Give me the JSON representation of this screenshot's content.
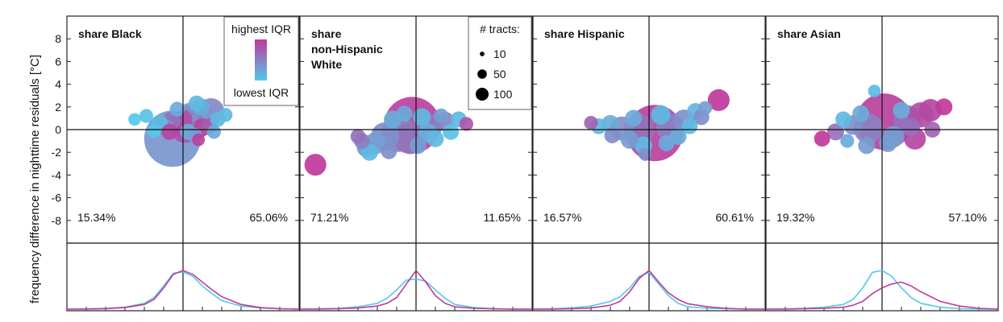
{
  "figure": {
    "ylabel_top": "difference in nighttime residuals [°C]",
    "ylabel_bottom": "frequency",
    "y_ticks": [
      "8",
      "6",
      "4",
      "2",
      "0",
      "-2",
      "-4",
      "-6",
      "-8"
    ]
  },
  "legend_color": {
    "top": "highest IQR",
    "bottom": "lowest IQR",
    "color_high": "#c0399a",
    "color_low": "#55c8ea"
  },
  "legend_size": {
    "title": "# tracts:",
    "items": [
      {
        "label": "10",
        "value": 10
      },
      {
        "label": "50",
        "value": 50
      },
      {
        "label": "100",
        "value": 100
      }
    ]
  },
  "chart_data": [
    {
      "type": "scatter",
      "title": "share Black",
      "ylim": [
        -10,
        10
      ],
      "pct_left": "15.34%",
      "pct_right": "65.06%",
      "points": [
        {
          "x": -0.55,
          "y": -0.8,
          "n": 100,
          "c": 0.35
        },
        {
          "x": 1.45,
          "y": 1.6,
          "n": 22,
          "c": 0.45
        },
        {
          "x": 0.55,
          "y": 0.6,
          "n": 38,
          "c": 0.7
        },
        {
          "x": 0.1,
          "y": 0.2,
          "n": 30,
          "c": 0.8
        },
        {
          "x": -0.15,
          "y": 0.4,
          "n": 18,
          "c": 0.9
        },
        {
          "x": 0.9,
          "y": 1.1,
          "n": 18,
          "c": 0.5
        },
        {
          "x": 0.35,
          "y": 1.5,
          "n": 12,
          "c": 0.4
        },
        {
          "x": 1.2,
          "y": 0.7,
          "n": 15,
          "c": 0.3
        },
        {
          "x": 0.7,
          "y": 2.3,
          "n": 8,
          "c": 0.1
        },
        {
          "x": 0.95,
          "y": 2.0,
          "n": 9,
          "c": 0.2
        },
        {
          "x": -0.6,
          "y": 0.8,
          "n": 10,
          "c": 0.6
        },
        {
          "x": -1.2,
          "y": 0.6,
          "n": 8,
          "c": 0.1
        },
        {
          "x": -1.9,
          "y": 1.2,
          "n": 6,
          "c": 0.05
        },
        {
          "x": -2.5,
          "y": 0.9,
          "n": 5,
          "c": 0.0
        },
        {
          "x": -0.9,
          "y": 0.2,
          "n": 9,
          "c": 0.4
        },
        {
          "x": 0.25,
          "y": -0.2,
          "n": 8,
          "c": 0.2
        },
        {
          "x": 0.6,
          "y": -0.5,
          "n": 7,
          "c": 0.3
        },
        {
          "x": 1.8,
          "y": 0.9,
          "n": 7,
          "c": 0.1
        },
        {
          "x": 2.2,
          "y": 1.3,
          "n": 6,
          "c": 0.1
        },
        {
          "x": 1.0,
          "y": 0.2,
          "n": 10,
          "c": 0.9
        },
        {
          "x": -0.3,
          "y": 1.8,
          "n": 7,
          "c": 0.2
        },
        {
          "x": 1.6,
          "y": -0.2,
          "n": 6,
          "c": 0.2
        },
        {
          "x": -1.5,
          "y": -0.1,
          "n": 6,
          "c": 0.0
        },
        {
          "x": 0.0,
          "y": 0.9,
          "n": 11,
          "c": 0.85
        },
        {
          "x": 0.45,
          "y": 1.0,
          "n": 14,
          "c": 0.55
        },
        {
          "x": -0.7,
          "y": -0.2,
          "n": 8,
          "c": 0.9
        },
        {
          "x": 1.35,
          "y": 0.3,
          "n": 8,
          "c": 0.75
        },
        {
          "x": 0.8,
          "y": -0.9,
          "n": 5,
          "c": 0.95
        }
      ],
      "hist_x": [
        -6,
        -5,
        -4,
        -3,
        -2,
        -1.5,
        -1,
        -0.5,
        0,
        0.5,
        1,
        1.5,
        2,
        3,
        4,
        5,
        6
      ],
      "hist_high": [
        0,
        0,
        0.01,
        0.04,
        0.12,
        0.25,
        0.55,
        0.9,
        1.0,
        0.9,
        0.7,
        0.5,
        0.32,
        0.12,
        0.04,
        0.01,
        0
      ],
      "hist_low": [
        0,
        0.01,
        0.02,
        0.05,
        0.15,
        0.3,
        0.6,
        0.93,
        0.96,
        0.85,
        0.6,
        0.4,
        0.22,
        0.08,
        0.03,
        0.01,
        0
      ]
    },
    {
      "type": "scatter",
      "title": "share non-Hispanic White",
      "ylim": [
        -10,
        10
      ],
      "pct_left": "71.21%",
      "pct_right": "11.65%",
      "points": [
        {
          "x": -0.2,
          "y": 0.4,
          "n": 100,
          "c": 0.95
        },
        {
          "x": -5.2,
          "y": -3.1,
          "n": 15,
          "c": 1.0
        },
        {
          "x": -0.9,
          "y": -0.4,
          "n": 40,
          "c": 0.5
        },
        {
          "x": -1.6,
          "y": -0.6,
          "n": 25,
          "c": 0.4
        },
        {
          "x": -2.1,
          "y": -1.2,
          "n": 15,
          "c": 0.3
        },
        {
          "x": -2.6,
          "y": -1.6,
          "n": 10,
          "c": 0.35
        },
        {
          "x": -0.3,
          "y": -0.8,
          "n": 30,
          "c": 0.6
        },
        {
          "x": 0.7,
          "y": 0.3,
          "n": 20,
          "c": 0.55
        },
        {
          "x": 1.5,
          "y": 0.7,
          "n": 12,
          "c": 0.5
        },
        {
          "x": 2.2,
          "y": 0.9,
          "n": 8,
          "c": 0.1
        },
        {
          "x": 2.6,
          "y": 0.5,
          "n": 6,
          "c": 0.8
        },
        {
          "x": -1.2,
          "y": 0.9,
          "n": 10,
          "c": 0.2
        },
        {
          "x": 0.3,
          "y": 1.1,
          "n": 10,
          "c": 0.1
        },
        {
          "x": 0.6,
          "y": -0.3,
          "n": 12,
          "c": 0.2
        },
        {
          "x": -2.4,
          "y": -2.0,
          "n": 9,
          "c": 0.1
        },
        {
          "x": -3.0,
          "y": -0.6,
          "n": 7,
          "c": 0.6
        },
        {
          "x": 1.0,
          "y": -0.8,
          "n": 9,
          "c": 0.1
        },
        {
          "x": 1.8,
          "y": -0.2,
          "n": 8,
          "c": 0.05
        },
        {
          "x": -1.4,
          "y": -1.9,
          "n": 8,
          "c": 0.4
        },
        {
          "x": 0.1,
          "y": -1.4,
          "n": 9,
          "c": 0.3
        },
        {
          "x": -0.6,
          "y": 1.4,
          "n": 8,
          "c": 0.2
        },
        {
          "x": 1.3,
          "y": 1.2,
          "n": 7,
          "c": 0.3
        },
        {
          "x": -2.8,
          "y": -1.0,
          "n": 8,
          "c": 0.5
        }
      ],
      "hist_x": [
        -6,
        -5,
        -4,
        -3,
        -2,
        -1.5,
        -1,
        -0.5,
        0,
        0.5,
        1,
        1.5,
        2,
        3,
        4,
        5,
        6
      ],
      "hist_high": [
        0,
        0,
        0.01,
        0.03,
        0.08,
        0.15,
        0.3,
        0.65,
        1.0,
        0.7,
        0.35,
        0.15,
        0.06,
        0.02,
        0.01,
        0,
        0
      ],
      "hist_low": [
        0,
        0.01,
        0.02,
        0.06,
        0.15,
        0.28,
        0.5,
        0.75,
        0.78,
        0.72,
        0.5,
        0.28,
        0.12,
        0.04,
        0.01,
        0,
        0
      ]
    },
    {
      "type": "scatter",
      "title": "share Hispanic",
      "ylim": [
        -10,
        10
      ],
      "pct_left": "16.57%",
      "pct_right": "60.61%",
      "points": [
        {
          "x": 0.3,
          "y": -0.3,
          "n": 100,
          "c": 0.95
        },
        {
          "x": 3.6,
          "y": 2.6,
          "n": 15,
          "c": 1.0
        },
        {
          "x": -0.5,
          "y": 0.0,
          "n": 30,
          "c": 0.6
        },
        {
          "x": 1.1,
          "y": 0.2,
          "n": 25,
          "c": 0.5
        },
        {
          "x": 1.8,
          "y": 0.8,
          "n": 15,
          "c": 0.4
        },
        {
          "x": -1.4,
          "y": 0.1,
          "n": 18,
          "c": 0.4
        },
        {
          "x": -2.0,
          "y": 0.5,
          "n": 10,
          "c": 0.2
        },
        {
          "x": -2.6,
          "y": 0.3,
          "n": 8,
          "c": 0.1
        },
        {
          "x": 2.4,
          "y": 1.6,
          "n": 9,
          "c": 0.15
        },
        {
          "x": 2.7,
          "y": 1.1,
          "n": 8,
          "c": 0.4
        },
        {
          "x": -0.3,
          "y": -1.4,
          "n": 10,
          "c": 0.1
        },
        {
          "x": 0.6,
          "y": 1.3,
          "n": 12,
          "c": 0.1
        },
        {
          "x": 1.5,
          "y": -0.6,
          "n": 9,
          "c": 0.2
        },
        {
          "x": -1.0,
          "y": -0.9,
          "n": 10,
          "c": 0.3
        },
        {
          "x": -3.0,
          "y": 0.6,
          "n": 6,
          "c": 0.7
        },
        {
          "x": -0.8,
          "y": 1.0,
          "n": 9,
          "c": 0.2
        },
        {
          "x": 2.1,
          "y": 0.3,
          "n": 8,
          "c": 0.1
        },
        {
          "x": -0.2,
          "y": -2.2,
          "n": 5,
          "c": 0.4
        },
        {
          "x": 0.9,
          "y": -1.2,
          "n": 8,
          "c": 0.2
        },
        {
          "x": -1.9,
          "y": -0.5,
          "n": 8,
          "c": 0.4
        },
        {
          "x": 2.9,
          "y": 1.9,
          "n": 6,
          "c": 0.3
        }
      ],
      "hist_x": [
        -6,
        -5,
        -4,
        -3,
        -2,
        -1.5,
        -1,
        -0.5,
        0,
        0.5,
        1,
        1.5,
        2,
        3,
        4,
        5,
        6
      ],
      "hist_high": [
        0,
        0,
        0.01,
        0.03,
        0.1,
        0.2,
        0.45,
        0.8,
        1.0,
        0.7,
        0.42,
        0.25,
        0.14,
        0.06,
        0.02,
        0,
        0
      ],
      "hist_low": [
        0,
        0.01,
        0.03,
        0.08,
        0.2,
        0.32,
        0.55,
        0.85,
        0.95,
        0.65,
        0.35,
        0.15,
        0.06,
        0.02,
        0.01,
        0,
        0
      ]
    },
    {
      "type": "scatter",
      "title": "share Asian",
      "ylim": [
        -10,
        10
      ],
      "pct_left": "19.32%",
      "pct_right": "57.10%",
      "points": [
        {
          "x": 0.1,
          "y": 0.7,
          "n": 100,
          "c": 0.95
        },
        {
          "x": -0.7,
          "y": 0.1,
          "n": 28,
          "c": 0.5
        },
        {
          "x": 1.3,
          "y": 0.9,
          "n": 25,
          "c": 0.6
        },
        {
          "x": 2.0,
          "y": 1.3,
          "n": 20,
          "c": 0.85
        },
        {
          "x": 2.5,
          "y": 1.7,
          "n": 16,
          "c": 0.9
        },
        {
          "x": 1.7,
          "y": -0.8,
          "n": 15,
          "c": 0.9
        },
        {
          "x": 3.2,
          "y": 2.0,
          "n": 9,
          "c": 1.0
        },
        {
          "x": -1.5,
          "y": 0.4,
          "n": 12,
          "c": 0.4
        },
        {
          "x": -2.4,
          "y": -0.2,
          "n": 9,
          "c": 0.6
        },
        {
          "x": -3.1,
          "y": -0.8,
          "n": 8,
          "c": 1.0
        },
        {
          "x": 0.6,
          "y": -0.6,
          "n": 14,
          "c": 0.3
        },
        {
          "x": -0.4,
          "y": 3.4,
          "n": 5,
          "c": 0.1
        },
        {
          "x": -1.1,
          "y": 1.4,
          "n": 9,
          "c": 0.2
        },
        {
          "x": 1.0,
          "y": 1.7,
          "n": 9,
          "c": 0.2
        },
        {
          "x": -0.8,
          "y": -1.4,
          "n": 9,
          "c": 0.3
        },
        {
          "x": 2.6,
          "y": 0.0,
          "n": 8,
          "c": 0.7
        },
        {
          "x": -2.0,
          "y": 0.9,
          "n": 8,
          "c": 0.1
        },
        {
          "x": 0.3,
          "y": -1.2,
          "n": 10,
          "c": 0.3
        },
        {
          "x": 1.5,
          "y": 0.2,
          "n": 10,
          "c": 0.6
        },
        {
          "x": -1.8,
          "y": -1.0,
          "n": 6,
          "c": 0.2
        }
      ],
      "hist_x": [
        -6,
        -5,
        -4,
        -3,
        -2,
        -1.5,
        -1,
        -0.5,
        0,
        0.5,
        1,
        1.5,
        2,
        3,
        4,
        5,
        6
      ],
      "hist_high": [
        0,
        0,
        0.01,
        0.02,
        0.05,
        0.1,
        0.2,
        0.4,
        0.55,
        0.65,
        0.7,
        0.6,
        0.45,
        0.2,
        0.08,
        0.02,
        0
      ],
      "hist_low": [
        0,
        0.01,
        0.02,
        0.05,
        0.12,
        0.25,
        0.55,
        0.95,
        1.0,
        0.85,
        0.55,
        0.3,
        0.15,
        0.05,
        0.01,
        0,
        0
      ]
    }
  ]
}
